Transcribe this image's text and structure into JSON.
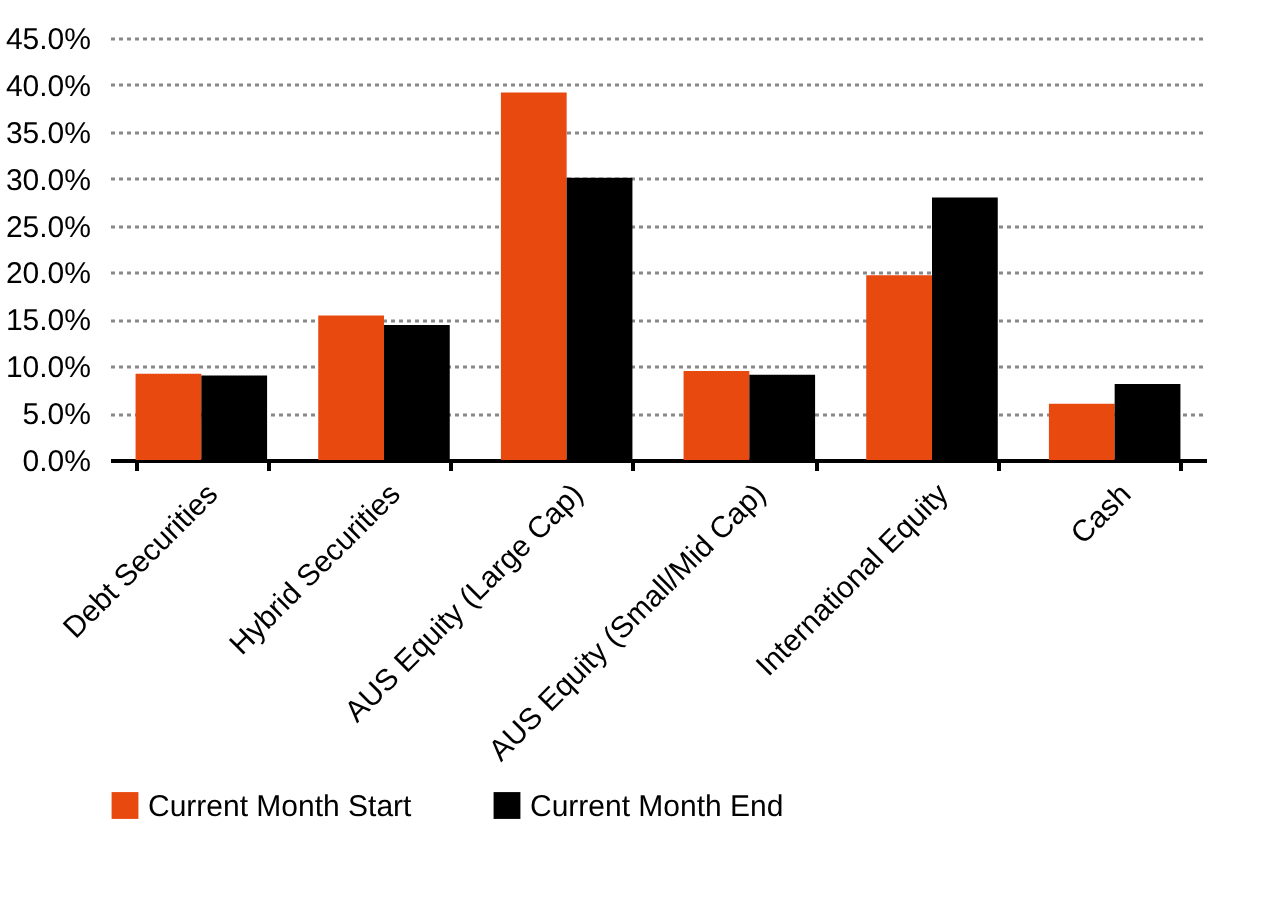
{
  "chart_data": {
    "type": "bar",
    "categories": [
      "Debt Securities",
      "Hybrid Securities",
      "AUS Equity (Large Cap)",
      "AUS Equity (Small/Mid Cap)",
      "International Equity",
      "Cash"
    ],
    "series": [
      {
        "name": "Current Month Start",
        "color": "#e8490f",
        "values": [
          9.2,
          15.4,
          39.2,
          9.5,
          19.7,
          6.0
        ]
      },
      {
        "name": "Current Month End",
        "color": "#000000",
        "values": [
          9.0,
          14.4,
          30.1,
          9.1,
          28.0,
          8.1
        ]
      }
    ],
    "ylim": [
      0,
      45
    ],
    "yticks": [
      {
        "value": 0,
        "label": "0.0%"
      },
      {
        "value": 5,
        "label": "5.0%"
      },
      {
        "value": 10,
        "label": "10.0%"
      },
      {
        "value": 15,
        "label": "15.0%"
      },
      {
        "value": 20,
        "label": "20.0%"
      },
      {
        "value": 25,
        "label": "25.0%"
      },
      {
        "value": 30,
        "label": "30.0%"
      },
      {
        "value": 35,
        "label": "35.0%"
      },
      {
        "value": 40,
        "label": "40.0%"
      },
      {
        "value": 45,
        "label": "45.0%"
      }
    ],
    "grid": "y",
    "legend": "bottom"
  }
}
